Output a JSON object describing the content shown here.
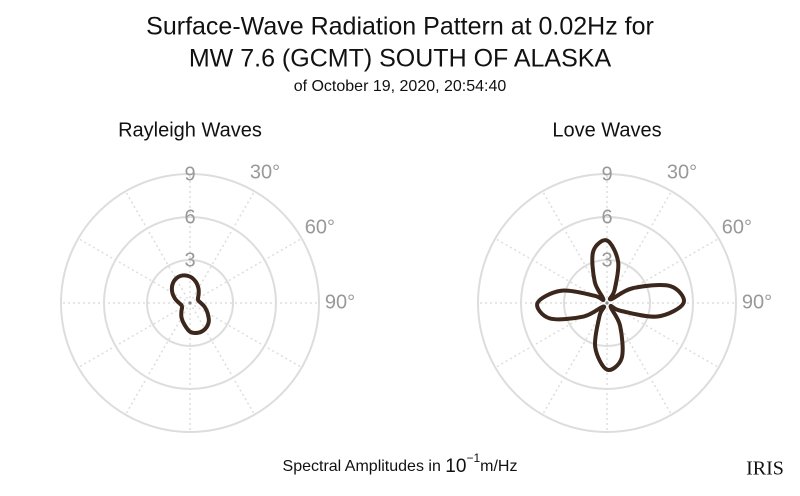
{
  "title": [
    "Surface-Wave Radiation Pattern at 0.02Hz for",
    "MW 7.6 (GCMT) SOUTH OF ALASKA"
  ],
  "subtitle": "of October 19, 2020, 20:54:40",
  "footer": {
    "text": "Spectral Amplitudes in",
    "base": "10",
    "exponent": "−1",
    "unit": "m/Hz"
  },
  "logo": "IRIS",
  "chart_data": [
    {
      "type": "polar",
      "title": "Rayleigh Waves",
      "color": "#3b271c",
      "theta": [
        0,
        15,
        30,
        45,
        60,
        75,
        90,
        105,
        120,
        135,
        150,
        165,
        180,
        195,
        210,
        225,
        240,
        255,
        270,
        285,
        300,
        315,
        330,
        345
      ],
      "values": [
        1.84,
        1.54,
        1.18,
        0.85,
        0.64,
        0.61,
        0.76,
        1.06,
        1.42,
        1.85,
        2.1,
        2.15,
        2.0,
        1.54,
        1.18,
        0.85,
        0.64,
        0.61,
        0.76,
        1.06,
        1.42,
        1.75,
        1.96,
        1.99
      ],
      "rlim": [
        0,
        9
      ],
      "rticks": [
        3,
        6,
        9
      ],
      "thetaticks": [
        {
          "value": 30,
          "label": "30°"
        },
        {
          "value": 60,
          "label": "60°"
        },
        {
          "value": 90,
          "label": "90°"
        }
      ],
      "grid": true
    },
    {
      "type": "polar",
      "title": "Love Waves",
      "color": "#3b271c",
      "theta": [
        0,
        15,
        30,
        45,
        60,
        75,
        90,
        105,
        120,
        135,
        150,
        165,
        180,
        195,
        210,
        225,
        240,
        255,
        270,
        285,
        300,
        315,
        330,
        345
      ],
      "values": [
        4.36,
        2.99,
        1.06,
        0.36,
        2.06,
        4.56,
        5.34,
        3.64,
        1.08,
        0.35,
        1.82,
        3.97,
        4.65,
        3.18,
        1.04,
        0.35,
        1.89,
        4.14,
        4.85,
        3.31,
        1.02,
        0.35,
        1.71,
        3.72
      ],
      "rlim": [
        0,
        9
      ],
      "rticks": [
        3,
        6,
        9
      ],
      "thetaticks": [
        {
          "value": 30,
          "label": "30°"
        },
        {
          "value": 60,
          "label": "60°"
        },
        {
          "value": 90,
          "label": "90°"
        }
      ],
      "grid": true
    }
  ]
}
